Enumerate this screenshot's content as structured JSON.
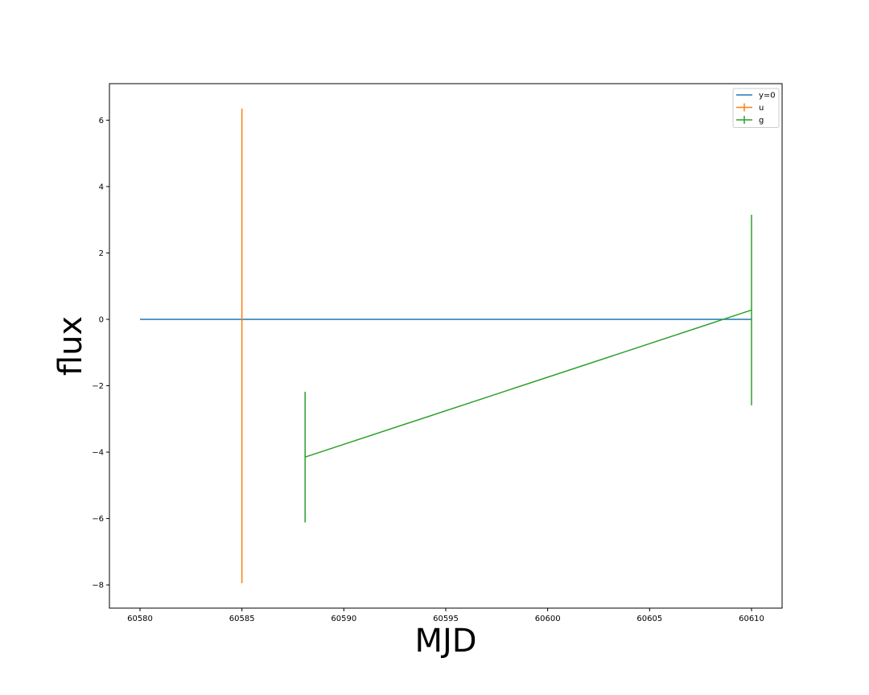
{
  "chart_data": {
    "type": "line",
    "title": "",
    "xlabel": "MJD",
    "ylabel": "flux",
    "xlim": [
      60578.5,
      60611.5
    ],
    "ylim": [
      -8.7,
      7.1
    ],
    "xticks": [
      60580,
      60585,
      60590,
      60595,
      60600,
      60605,
      60610
    ],
    "yticks": [
      -8,
      -6,
      -4,
      -2,
      0,
      2,
      4,
      6
    ],
    "grid": false,
    "legend_placement": "top-right",
    "series": [
      {
        "name": "y=0",
        "kind": "line",
        "color": "#1f77b4",
        "x": [
          60580,
          60610
        ],
        "y": [
          0,
          0
        ]
      },
      {
        "name": "u",
        "kind": "errorbar",
        "color": "#ff7f0e",
        "x": [
          60585
        ],
        "y": [
          -0.8
        ],
        "yerr": [
          7.15
        ]
      },
      {
        "name": "g",
        "kind": "errorbar",
        "color": "#2ca02c",
        "x": [
          60588.1,
          60610
        ],
        "y": [
          -4.15,
          0.28
        ],
        "yerr": [
          1.97,
          2.87
        ]
      }
    ]
  }
}
